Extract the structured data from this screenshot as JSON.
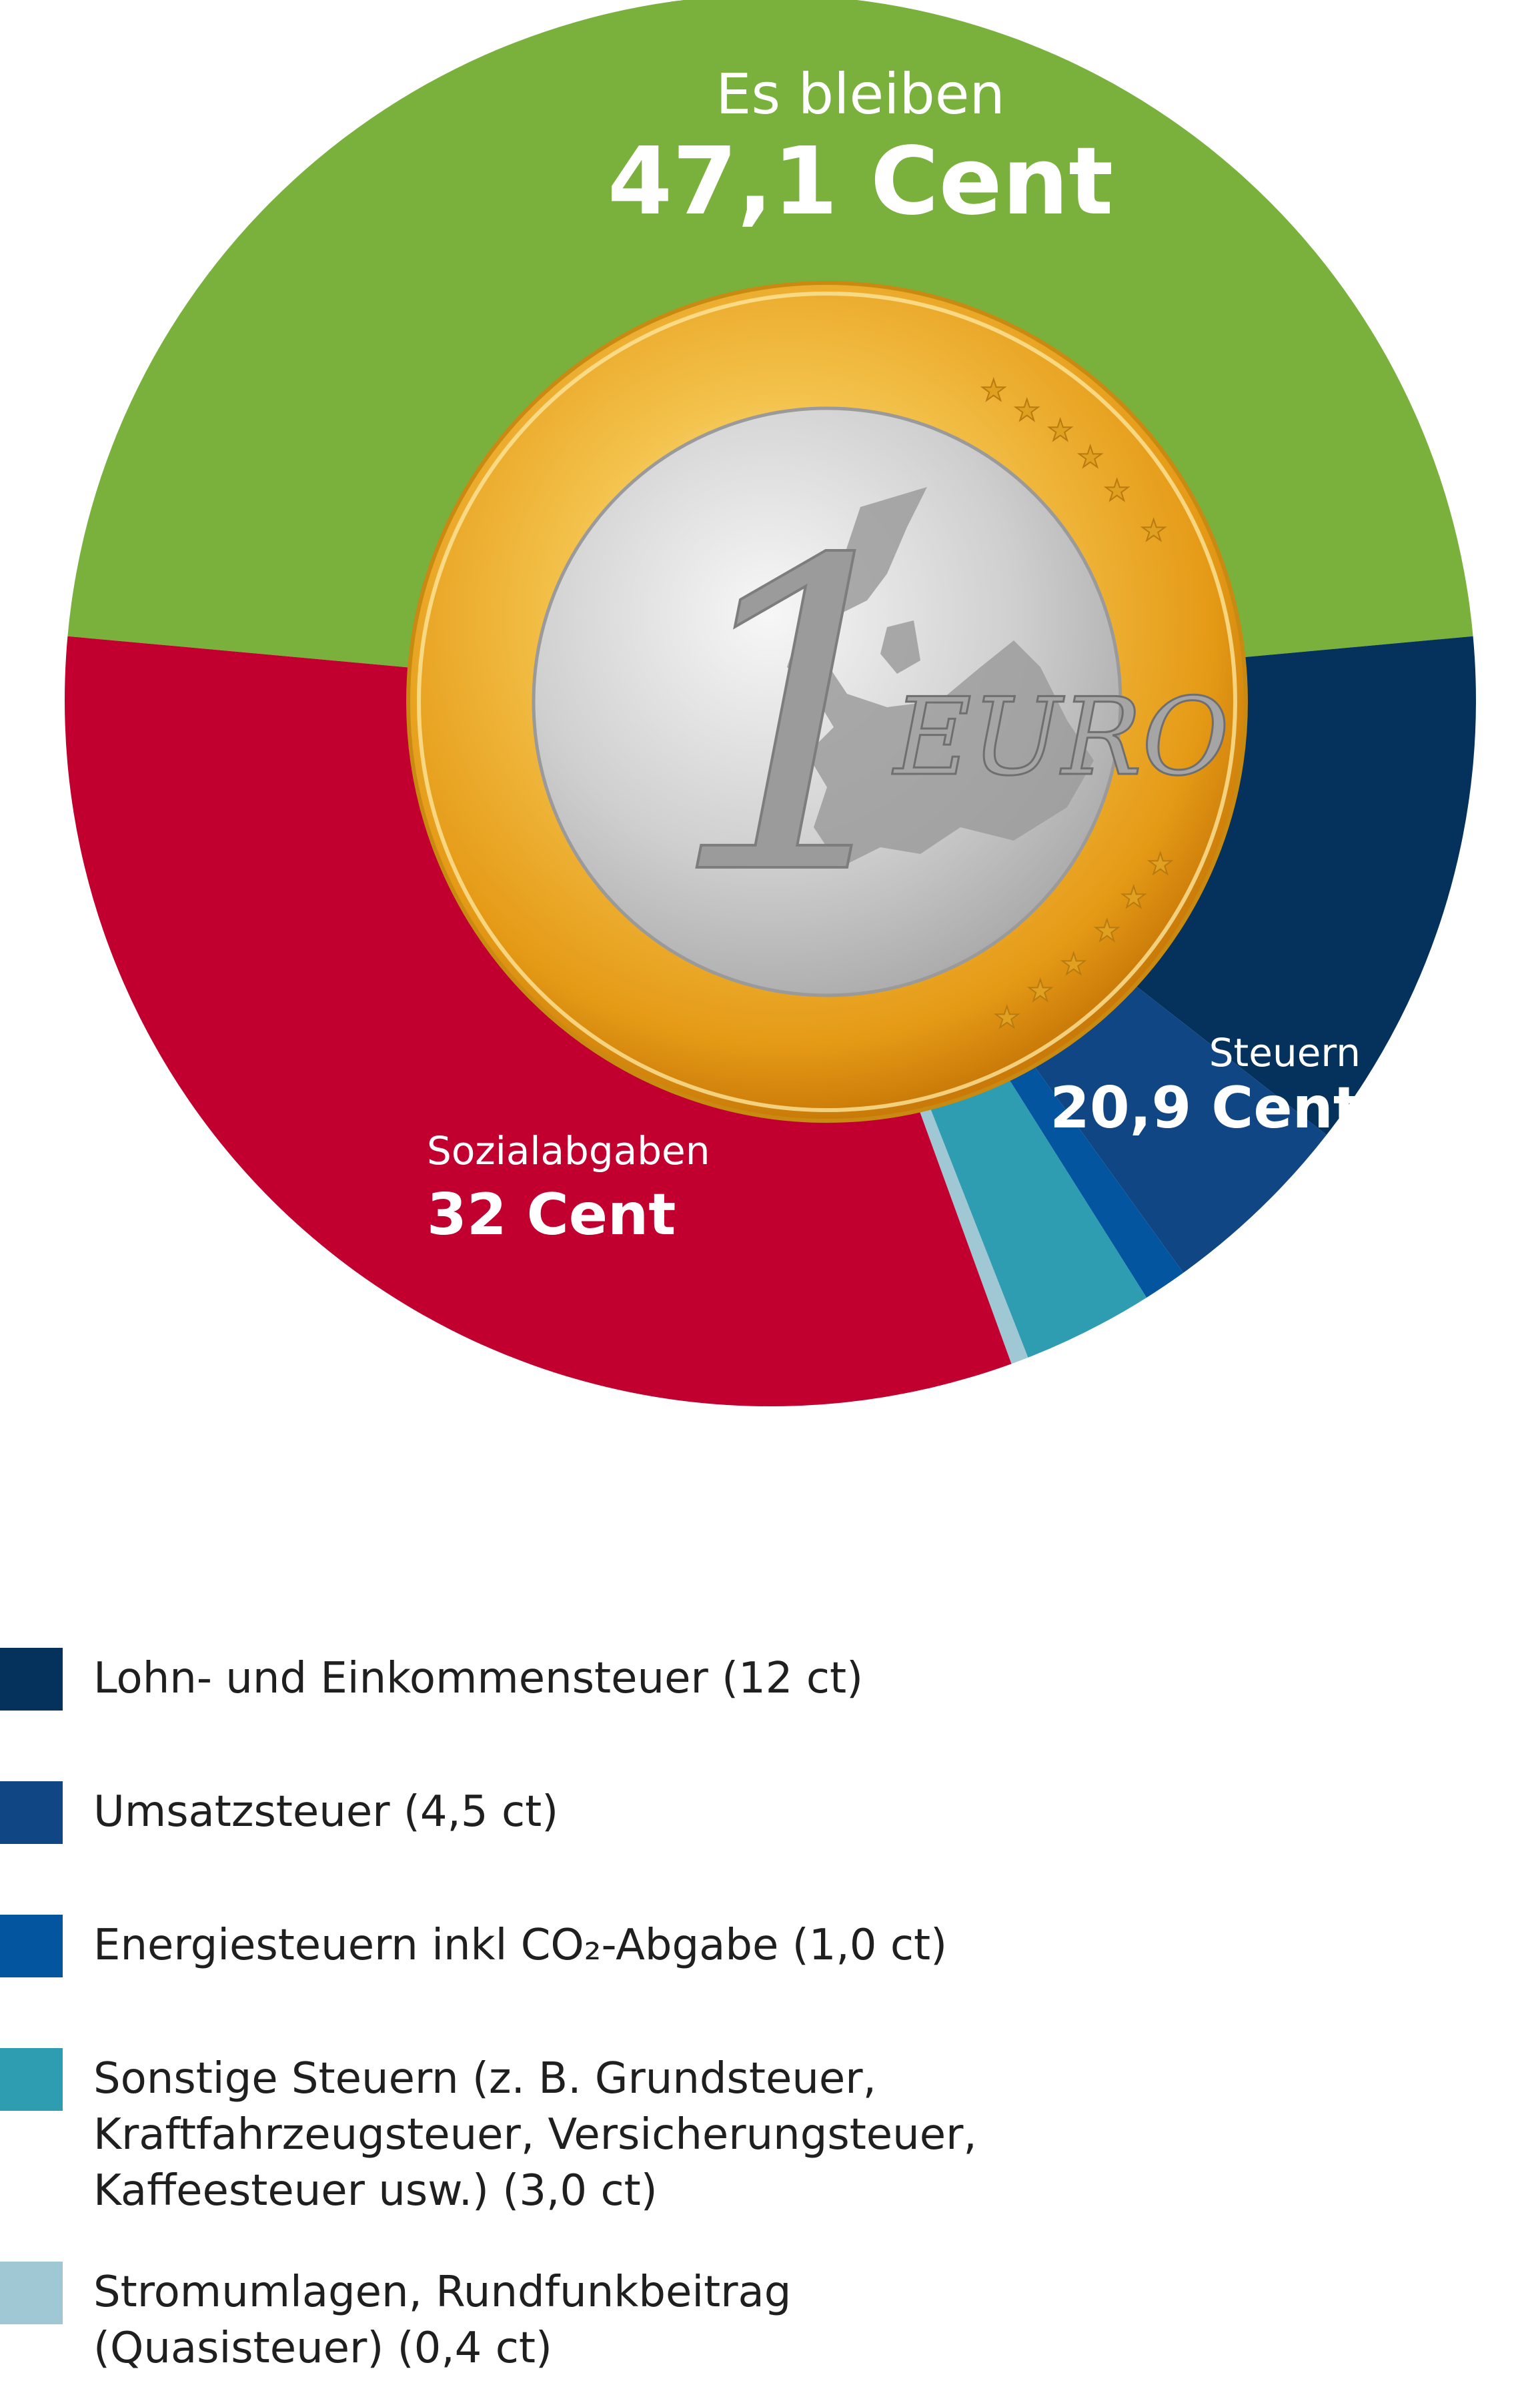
{
  "chart_data": {
    "type": "pie",
    "segments": [
      {
        "name": "Es bleiben",
        "value": 47.1,
        "color": "#7ab03c"
      },
      {
        "name": "Lohn- und Einkommensteuer (12 ct)",
        "value": 12.0,
        "color": "#05325c"
      },
      {
        "name": "Umsatzsteuer (4,5 ct)",
        "value": 4.5,
        "color": "#0f4683"
      },
      {
        "name": "Energiesteuern inkl CO₂-Abgabe (1,0 ct)",
        "value": 1.0,
        "color": "#04559f"
      },
      {
        "name": "Sonstige Steuern (z. B. Grundsteuer, Kraftfahrzeugsteuer, Versicherungsteuer, Kaffeesteuer usw.) (3,0 ct)",
        "value": 3.0,
        "color": "#2e9db2"
      },
      {
        "name": "Stromumlagen, Rundfunkbeitrag (Quasisteuer) (0,4 ct)",
        "value": 0.4,
        "color": "#9fc7d4"
      },
      {
        "name": "Sozialabgaben",
        "value": 32.0,
        "color": "#c2002f"
      }
    ],
    "labels": {
      "remaining": {
        "caption": "Es bleiben",
        "value": "47,1 Cent"
      },
      "taxes": {
        "caption": "Steuern",
        "value": "20,9 Cent"
      },
      "social": {
        "caption": "Sozialabgaben",
        "value": "32 Cent"
      }
    },
    "center_image": {
      "icon": "one-euro-coin-icon",
      "text": "EURO",
      "numeral": "1"
    }
  },
  "legend": [
    {
      "label": "Lohn- und Einkommensteuer (12 ct)",
      "color": "#05325c"
    },
    {
      "label": "Umsatzsteuer (4,5 ct)",
      "color": "#0f4683"
    },
    {
      "label": "Energiesteuern inkl CO₂-Abgabe (1,0 ct)",
      "color": "#04559f"
    },
    {
      "label": "Sonstige Steuern (z. B. Grundsteuer,\nKraftfahrzeugsteuer, Versicherungsteuer,\nKaffeesteuer usw.) (3,0 ct)",
      "color": "#2e9db2"
    },
    {
      "label": "Stromumlagen, Rundfunkbeitrag\n(Quasisteuer) (0,4 ct)",
      "color": "#9fc7d4"
    }
  ]
}
